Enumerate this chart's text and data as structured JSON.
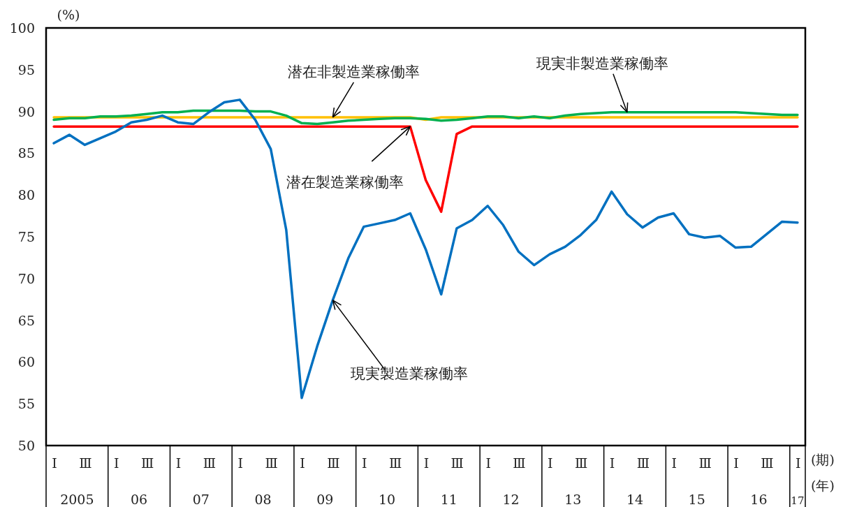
{
  "chart_data": {
    "type": "line",
    "ylabel": "(%)",
    "categories": [
      "Ⅰ",
      null,
      "Ⅲ",
      null,
      "Ⅰ",
      null,
      "Ⅲ",
      null,
      "Ⅰ",
      null,
      "Ⅲ",
      null,
      "Ⅰ",
      null,
      "Ⅲ",
      null,
      "Ⅰ",
      null,
      "Ⅲ",
      null,
      "Ⅰ",
      null,
      "Ⅲ",
      null,
      "Ⅰ",
      null,
      "Ⅲ",
      null,
      "Ⅰ",
      null,
      "Ⅲ",
      null,
      "Ⅰ",
      null,
      "Ⅲ",
      null,
      "Ⅰ",
      null,
      "Ⅲ",
      null,
      "Ⅰ",
      null,
      "Ⅲ",
      null,
      "Ⅰ",
      null,
      "Ⅲ",
      null,
      "Ⅰ"
    ],
    "series": [
      {
        "name": "現実製造業稼働率",
        "color": "#0070c0",
        "values": [
          86.2,
          87.2,
          86.0,
          86.8,
          87.6,
          88.7,
          89.0,
          89.5,
          88.7,
          88.5,
          89.9,
          91.1,
          91.4,
          89.0,
          85.5,
          75.8,
          55.7,
          61.9,
          67.4,
          72.4,
          76.2,
          76.6,
          77.0,
          77.8,
          73.5,
          68.1,
          76.0,
          77.0,
          78.7,
          76.4,
          73.2,
          71.6,
          72.9,
          73.8,
          75.2,
          77.0,
          80.4,
          77.7,
          76.1,
          77.3,
          77.8,
          75.3,
          74.9,
          75.1,
          73.7,
          73.8,
          75.3,
          76.8,
          76.7
        ]
      },
      {
        "name": "潜在製造業稼働率",
        "color": "#ff0000",
        "values": [
          88.2,
          88.2,
          88.2,
          88.2,
          88.2,
          88.2,
          88.2,
          88.2,
          88.2,
          88.2,
          88.2,
          88.2,
          88.2,
          88.2,
          88.2,
          88.2,
          88.2,
          88.2,
          88.2,
          88.2,
          88.2,
          88.2,
          88.2,
          88.2,
          81.8,
          78.0,
          87.3,
          88.2,
          88.2,
          88.2,
          88.2,
          88.2,
          88.2,
          88.2,
          88.2,
          88.2,
          88.2,
          88.2,
          88.2,
          88.2,
          88.2,
          88.2,
          88.2,
          88.2,
          88.2,
          88.2,
          88.2,
          88.2,
          88.2
        ]
      },
      {
        "name": "現実非製造業稼働率",
        "color": "#00b050",
        "values": [
          89.0,
          89.2,
          89.2,
          89.4,
          89.4,
          89.5,
          89.7,
          89.9,
          89.9,
          90.1,
          90.1,
          90.1,
          90.1,
          90.0,
          90.0,
          89.5,
          88.6,
          88.5,
          88.7,
          88.9,
          89.0,
          89.1,
          89.2,
          89.2,
          89.1,
          88.9,
          89.0,
          89.2,
          89.4,
          89.4,
          89.2,
          89.4,
          89.2,
          89.5,
          89.7,
          89.8,
          89.9,
          89.9,
          89.9,
          89.9,
          89.9,
          89.9,
          89.9,
          89.9,
          89.9,
          89.8,
          89.7,
          89.6,
          89.6
        ]
      },
      {
        "name": "潜在非製造業稼働率",
        "color": "#ffc000",
        "values": [
          89.3,
          89.3,
          89.3,
          89.3,
          89.3,
          89.3,
          89.3,
          89.3,
          89.3,
          89.3,
          89.3,
          89.3,
          89.3,
          89.3,
          89.3,
          89.3,
          89.3,
          89.3,
          89.3,
          89.3,
          89.3,
          89.3,
          89.3,
          89.3,
          89.0,
          89.3,
          89.3,
          89.3,
          89.3,
          89.3,
          89.3,
          89.3,
          89.3,
          89.3,
          89.3,
          89.3,
          89.3,
          89.3,
          89.3,
          89.3,
          89.3,
          89.3,
          89.3,
          89.3,
          89.3,
          89.3,
          89.3,
          89.3,
          89.3
        ]
      }
    ],
    "ylim": [
      50,
      100
    ],
    "yticks": [
      50,
      55,
      60,
      65,
      70,
      75,
      80,
      85,
      90,
      95,
      100
    ],
    "annotations": [
      "2005",
      "06",
      "07",
      "08",
      "09",
      "10",
      "11",
      "12",
      "13",
      "14",
      "15",
      "16",
      "17",
      "(期)",
      "(年)"
    ],
    "grid": false,
    "marker": "none",
    "line_style": "solid"
  }
}
